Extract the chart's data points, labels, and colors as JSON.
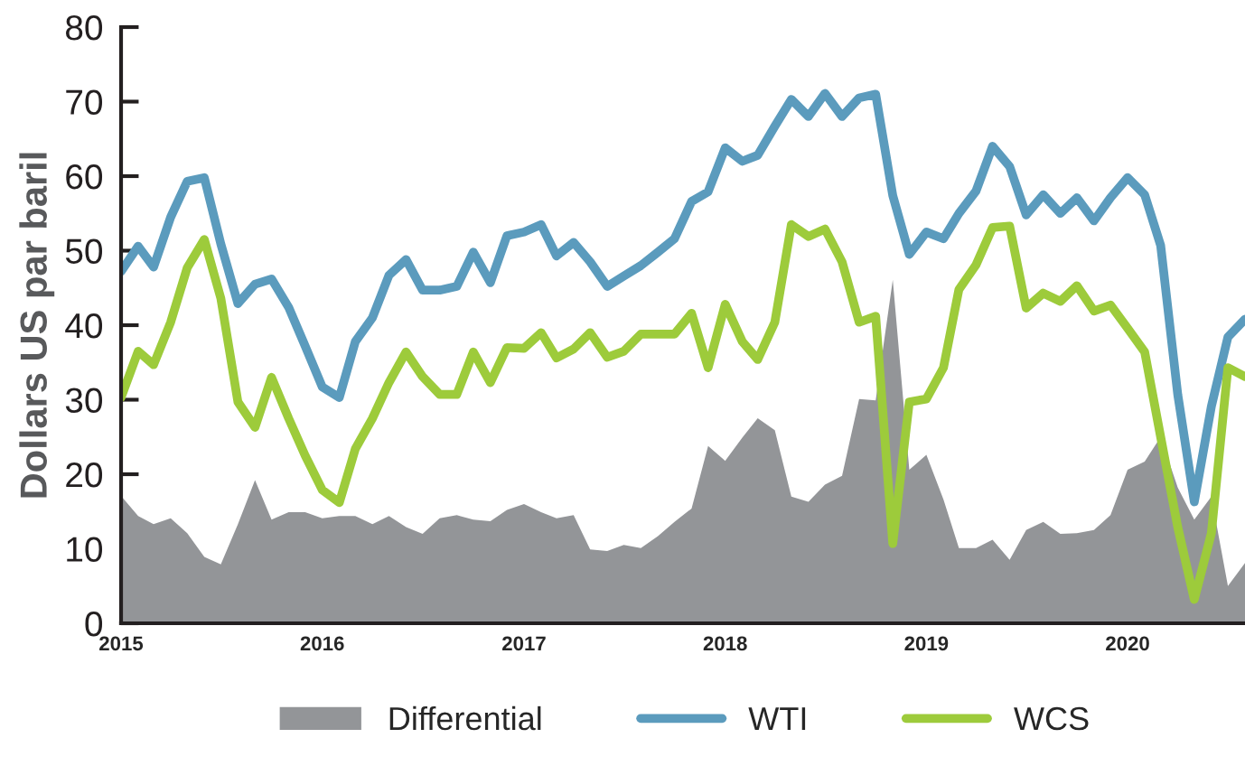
{
  "chart_data": {
    "type": "line",
    "ylabel": "Dollars US par baril",
    "x": [
      "2015-01",
      "2015-02",
      "2015-03",
      "2015-04",
      "2015-05",
      "2015-06",
      "2015-07",
      "2015-08",
      "2015-09",
      "2015-10",
      "2015-11",
      "2015-12",
      "2016-01",
      "2016-02",
      "2016-03",
      "2016-04",
      "2016-05",
      "2016-06",
      "2016-07",
      "2016-08",
      "2016-09",
      "2016-10",
      "2016-11",
      "2016-12",
      "2017-01",
      "2017-02",
      "2017-03",
      "2017-04",
      "2017-05",
      "2017-06",
      "2017-07",
      "2017-08",
      "2017-09",
      "2017-10",
      "2017-11",
      "2017-12",
      "2018-01",
      "2018-02",
      "2018-03",
      "2018-04",
      "2018-05",
      "2018-06",
      "2018-07",
      "2018-08",
      "2018-09",
      "2018-10",
      "2018-11",
      "2018-12",
      "2019-01",
      "2019-02",
      "2019-03",
      "2019-04",
      "2019-05",
      "2019-06",
      "2019-07",
      "2019-08",
      "2019-09",
      "2019-10",
      "2019-11",
      "2019-12",
      "2020-01",
      "2020-02",
      "2020-03",
      "2020-04",
      "2020-05",
      "2020-06",
      "2020-07",
      "2020-08"
    ],
    "series": [
      {
        "name": "Differential",
        "type": "area",
        "color": "#939598",
        "values": [
          17.1,
          14.4,
          13.3,
          14.1,
          12.1,
          8.9,
          7.9,
          13.3,
          19.2,
          13.9,
          14.9,
          14.9,
          14.1,
          14.4,
          14.4,
          13.3,
          14.4,
          12.9,
          12.0,
          14.1,
          14.5,
          13.9,
          13.7,
          15.2,
          16.0,
          14.9,
          14.1,
          14.5,
          9.9,
          9.7,
          10.5,
          10.1,
          11.7,
          13.6,
          15.4,
          23.8,
          21.8,
          24.9,
          27.5,
          25.9,
          17.0,
          16.3,
          18.6,
          19.8,
          30.1,
          29.9,
          46.1,
          20.6,
          22.6,
          16.6,
          10.1,
          10.1,
          11.2,
          8.5,
          12.5,
          13.6,
          12.0,
          12.1,
          12.5,
          14.5,
          20.6,
          21.7,
          25.0,
          18.2,
          13.9,
          17.0,
          5.0,
          8.1
        ]
      },
      {
        "name": "WTI",
        "color": "#5b9bbd",
        "values": [
          47.2,
          50.6,
          47.8,
          54.5,
          59.3,
          59.8,
          50.9,
          42.9,
          45.5,
          46.2,
          42.4,
          37.2,
          31.7,
          30.3,
          37.8,
          41.0,
          46.7,
          48.8,
          44.7,
          44.7,
          45.2,
          49.8,
          45.7,
          52.0,
          52.5,
          53.5,
          49.3,
          51.1,
          48.5,
          45.2,
          46.6,
          48.0,
          49.8,
          51.6,
          56.6,
          57.9,
          63.8,
          62.0,
          62.8,
          66.7,
          70.3,
          68.0,
          71.1,
          68.0,
          70.5,
          71.0,
          57.4,
          49.5,
          52.5,
          51.6,
          55.0,
          58.0,
          64.0,
          61.3,
          54.8,
          57.5,
          55.0,
          57.1,
          54.0,
          57.1,
          59.8,
          57.5,
          50.7,
          30.7,
          16.3,
          29.1,
          38.4,
          40.8
        ]
      },
      {
        "name": "WCS",
        "color": "#9dcb3b",
        "values": [
          30.3,
          36.5,
          34.7,
          40.4,
          47.7,
          51.5,
          43.6,
          29.7,
          26.3,
          33.0,
          27.5,
          22.5,
          17.9,
          16.2,
          23.4,
          27.5,
          32.3,
          36.4,
          33.1,
          30.7,
          30.7,
          36.4,
          32.3,
          37.0,
          36.9,
          39.0,
          35.6,
          36.8,
          39.0,
          35.7,
          36.5,
          38.8,
          38.8,
          38.8,
          41.6,
          34.3,
          42.8,
          37.8,
          35.4,
          40.4,
          53.5,
          51.9,
          52.9,
          48.5,
          40.4,
          41.2,
          10.7,
          29.7,
          30.1,
          34.3,
          44.8,
          48.1,
          53.1,
          53.3,
          42.3,
          44.3,
          43.2,
          45.3,
          41.9,
          42.7,
          39.6,
          36.4,
          25.0,
          12.9,
          3.2,
          12.1,
          34.3,
          33.1
        ]
      }
    ],
    "xlim": [
      "2015-01",
      "2020-08"
    ],
    "xticks": [
      {
        "value": "2015-01",
        "label": "2015"
      },
      {
        "value": "2015-02",
        "label": null
      },
      {
        "value": "2015-03",
        "label": null
      },
      {
        "value": "2015-04",
        "label": null
      },
      {
        "value": "2015-05",
        "label": null
      },
      {
        "value": "2015-06",
        "label": null
      },
      {
        "value": "2015-07",
        "label": null
      },
      {
        "value": "2015-08",
        "label": null
      },
      {
        "value": "2015-09",
        "label": null
      },
      {
        "value": "2015-10",
        "label": null
      },
      {
        "value": "2015-11",
        "label": null
      },
      {
        "value": "2015-12",
        "label": null
      },
      {
        "value": "2016-01",
        "label": "2016"
      },
      {
        "value": "2016-02",
        "label": null
      },
      {
        "value": "2016-03",
        "label": null
      },
      {
        "value": "2016-04",
        "label": null
      },
      {
        "value": "2016-05",
        "label": null
      },
      {
        "value": "2016-06",
        "label": null
      },
      {
        "value": "2016-07",
        "label": null
      },
      {
        "value": "2016-08",
        "label": null
      },
      {
        "value": "2016-09",
        "label": null
      },
      {
        "value": "2016-10",
        "label": null
      },
      {
        "value": "2016-11",
        "label": null
      },
      {
        "value": "2016-12",
        "label": null
      },
      {
        "value": "2017-01",
        "label": "2017"
      },
      {
        "value": "2017-02",
        "label": null
      },
      {
        "value": "2017-03",
        "label": null
      },
      {
        "value": "2017-04",
        "label": null
      },
      {
        "value": "2017-05",
        "label": null
      },
      {
        "value": "2017-06",
        "label": null
      },
      {
        "value": "2017-07",
        "label": null
      },
      {
        "value": "2017-08",
        "label": null
      },
      {
        "value": "2017-09",
        "label": null
      },
      {
        "value": "2017-10",
        "label": null
      },
      {
        "value": "2017-11",
        "label": null
      },
      {
        "value": "2017-12",
        "label": null
      },
      {
        "value": "2018-01",
        "label": "2018"
      },
      {
        "value": "2018-02",
        "label": null
      },
      {
        "value": "2018-03",
        "label": null
      },
      {
        "value": "2018-04",
        "label": null
      },
      {
        "value": "2018-05",
        "label": null
      },
      {
        "value": "2018-06",
        "label": null
      },
      {
        "value": "2018-07",
        "label": null
      },
      {
        "value": "2018-08",
        "label": null
      },
      {
        "value": "2018-09",
        "label": null
      },
      {
        "value": "2018-10",
        "label": null
      },
      {
        "value": "2018-11",
        "label": null
      },
      {
        "value": "2018-12",
        "label": null
      },
      {
        "value": "2019-01",
        "label": "2019"
      },
      {
        "value": "2019-02",
        "label": null
      },
      {
        "value": "2019-03",
        "label": null
      },
      {
        "value": "2019-04",
        "label": null
      },
      {
        "value": "2019-05",
        "label": null
      },
      {
        "value": "2019-06",
        "label": null
      },
      {
        "value": "2019-07",
        "label": null
      },
      {
        "value": "2019-08",
        "label": null
      },
      {
        "value": "2019-09",
        "label": null
      },
      {
        "value": "2019-10",
        "label": null
      },
      {
        "value": "2019-11",
        "label": null
      },
      {
        "value": "2019-12",
        "label": null
      },
      {
        "value": "2020-01",
        "label": "2020"
      },
      {
        "value": "2020-02",
        "label": null
      },
      {
        "value": "2020-03",
        "label": null
      },
      {
        "value": "2020-04",
        "label": null
      },
      {
        "value": "2020-05",
        "label": null
      },
      {
        "value": "2020-06",
        "label": null
      },
      {
        "value": "2020-07",
        "label": null
      },
      {
        "value": "2020-08",
        "label": null
      }
    ],
    "ylim": [
      0,
      80
    ],
    "yticks": [
      0,
      10,
      20,
      30,
      40,
      50,
      60,
      70,
      80
    ],
    "grid": false,
    "legend": "bottom",
    "marker": "none",
    "line_style": "solid"
  }
}
